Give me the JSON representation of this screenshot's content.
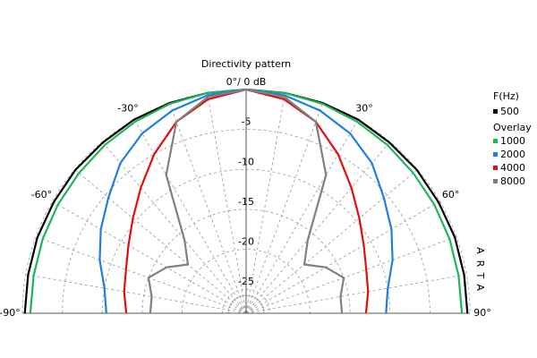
{
  "chart_data": {
    "type": "polar",
    "title": "Directivity pattern",
    "theta": [
      -90,
      -80,
      -70,
      -60,
      -50,
      -40,
      -30,
      -20,
      -10,
      0,
      10,
      20,
      30,
      40,
      50,
      60,
      70,
      80,
      90
    ],
    "rlim": [
      -28,
      0
    ],
    "rticks": [
      {
        "value": 0,
        "label": "0°/ 0 dB"
      },
      -5,
      -10,
      -15,
      -20,
      -25
    ],
    "thetaticks": [
      {
        "value": -90,
        "label": "-90°"
      },
      {
        "value": -60,
        "label": "-60°"
      },
      {
        "value": -30,
        "label": "-30°"
      },
      {
        "value": 30,
        "label": "30°"
      },
      {
        "value": 60,
        "label": "60°"
      },
      {
        "value": 90,
        "label": "90°"
      }
    ],
    "theta_grid": [
      -80,
      -70,
      -50,
      -40,
      -20,
      -10,
      0,
      10,
      20,
      40,
      50,
      70,
      80
    ],
    "legend_title": "F(Hz)",
    "overlay_title": "Overlay",
    "watermark": "ARTA",
    "series": [
      {
        "name": "500",
        "color": "#000000",
        "values": [
          -0.3,
          -0.3,
          -0.2,
          -0.2,
          -0.1,
          -0.1,
          0,
          0,
          0,
          0,
          0,
          0,
          0,
          -0.1,
          -0.1,
          -0.2,
          -0.2,
          -0.3,
          -0.3
        ]
      },
      {
        "name": "1000",
        "color": "#1fb45a",
        "values": [
          -1,
          -1,
          -0.9,
          -0.8,
          -0.7,
          -0.5,
          -0.3,
          -0.1,
          0,
          0,
          0,
          -0.1,
          -0.3,
          -0.5,
          -0.7,
          -0.8,
          -0.9,
          -1,
          -1
        ]
      },
      {
        "name": "2000",
        "color": "#1e7fe0",
        "values": [
          -10.5,
          -10,
          -8.5,
          -7,
          -5.5,
          -3.5,
          -2,
          -1,
          -0.3,
          0,
          -0.3,
          -1,
          -2,
          -3.5,
          -5.5,
          -7,
          -8.5,
          -10,
          -10.5
        ]
      },
      {
        "name": "4000",
        "color": "#e01010",
        "values": [
          -13,
          -12.5,
          -12,
          -11,
          -9.5,
          -7.5,
          -5,
          -2.5,
          -0.8,
          0,
          -0.8,
          -2.5,
          -5,
          -7.5,
          -9.5,
          -11,
          -12,
          -12.5,
          -13
        ]
      },
      {
        "name": "8000",
        "color": "#808080",
        "values": [
          -16,
          -16,
          -15,
          -16.5,
          -18.5,
          -16,
          -8,
          -2.5,
          -0.5,
          0,
          -0.5,
          -2.5,
          -8,
          -16,
          -18.5,
          -16.5,
          -15,
          -16,
          -16
        ]
      }
    ]
  }
}
